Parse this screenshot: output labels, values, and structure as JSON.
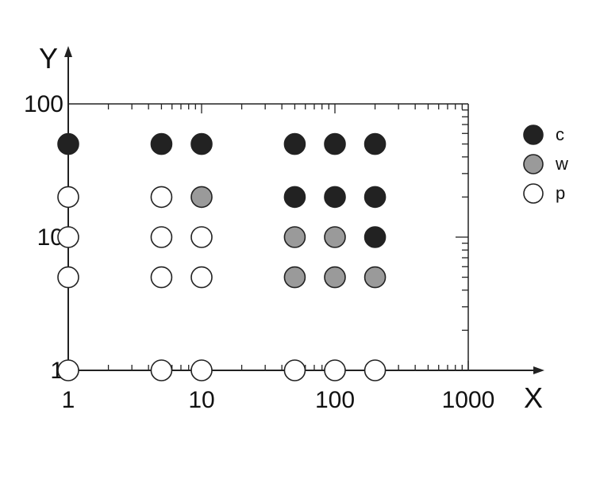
{
  "chart_data": {
    "type": "scatter",
    "title": "",
    "xlabel": "X",
    "ylabel": "Y",
    "x_scale": "log",
    "y_scale": "log",
    "xlim": [
      1,
      1000
    ],
    "ylim": [
      1,
      100
    ],
    "x_ticks": [
      {
        "value": 1,
        "label": "1"
      },
      {
        "value": 10,
        "label": "10"
      },
      {
        "value": 100,
        "label": "100"
      },
      {
        "value": 1000,
        "label": "1000"
      }
    ],
    "y_ticks": [
      {
        "value": 1,
        "label": "1"
      },
      {
        "value": 10,
        "label": "10"
      },
      {
        "value": 100,
        "label": "100"
      }
    ],
    "grid": false,
    "legend_position": "right",
    "colors": {
      "c": "#222222",
      "w": "#9a9a9a",
      "p": "#ffffff"
    },
    "series": [
      {
        "name": "c",
        "points": [
          {
            "x": 1,
            "y": 50
          },
          {
            "x": 5,
            "y": 50
          },
          {
            "x": 10,
            "y": 50
          },
          {
            "x": 50,
            "y": 50
          },
          {
            "x": 100,
            "y": 50
          },
          {
            "x": 200,
            "y": 50
          },
          {
            "x": 50,
            "y": 20
          },
          {
            "x": 100,
            "y": 20
          },
          {
            "x": 200,
            "y": 20
          },
          {
            "x": 200,
            "y": 10
          }
        ]
      },
      {
        "name": "w",
        "points": [
          {
            "x": 10,
            "y": 20
          },
          {
            "x": 50,
            "y": 10
          },
          {
            "x": 100,
            "y": 10
          },
          {
            "x": 50,
            "y": 5
          },
          {
            "x": 100,
            "y": 5
          },
          {
            "x": 200,
            "y": 5
          }
        ]
      },
      {
        "name": "p",
        "points": [
          {
            "x": 1,
            "y": 20
          },
          {
            "x": 5,
            "y": 20
          },
          {
            "x": 1,
            "y": 10
          },
          {
            "x": 5,
            "y": 10
          },
          {
            "x": 10,
            "y": 10
          },
          {
            "x": 1,
            "y": 5
          },
          {
            "x": 5,
            "y": 5
          },
          {
            "x": 10,
            "y": 5
          },
          {
            "x": 1,
            "y": 1
          },
          {
            "x": 5,
            "y": 1
          },
          {
            "x": 10,
            "y": 1
          },
          {
            "x": 50,
            "y": 1
          },
          {
            "x": 100,
            "y": 1
          },
          {
            "x": 200,
            "y": 1
          }
        ]
      }
    ]
  }
}
